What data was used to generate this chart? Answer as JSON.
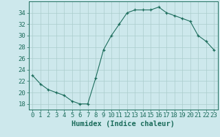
{
  "x": [
    0,
    1,
    2,
    3,
    4,
    5,
    6,
    7,
    8,
    9,
    10,
    11,
    12,
    13,
    14,
    15,
    16,
    17,
    18,
    19,
    20,
    21,
    22,
    23
  ],
  "y": [
    23,
    21.5,
    20.5,
    20,
    19.5,
    18.5,
    18,
    18,
    22.5,
    27.5,
    30,
    32,
    34,
    34.5,
    34.5,
    34.5,
    35,
    34,
    33.5,
    33,
    32.5,
    30,
    29,
    27.5
  ],
  "line_color": "#1a6b5a",
  "marker": "+",
  "bg_color": "#cde8ec",
  "grid_color": "#aacccc",
  "xlabel": "Humidex (Indice chaleur)",
  "ylim": [
    17,
    36
  ],
  "yticks": [
    18,
    20,
    22,
    24,
    26,
    28,
    30,
    32,
    34
  ],
  "xlim": [
    -0.5,
    23.5
  ],
  "xticks": [
    0,
    1,
    2,
    3,
    4,
    5,
    6,
    7,
    8,
    9,
    10,
    11,
    12,
    13,
    14,
    15,
    16,
    17,
    18,
    19,
    20,
    21,
    22,
    23
  ],
  "axis_color": "#1a6b5a",
  "tick_color": "#1a6b5a",
  "label_color": "#1a6b5a",
  "font_size_ticks": 6.5,
  "font_size_label": 7.5
}
